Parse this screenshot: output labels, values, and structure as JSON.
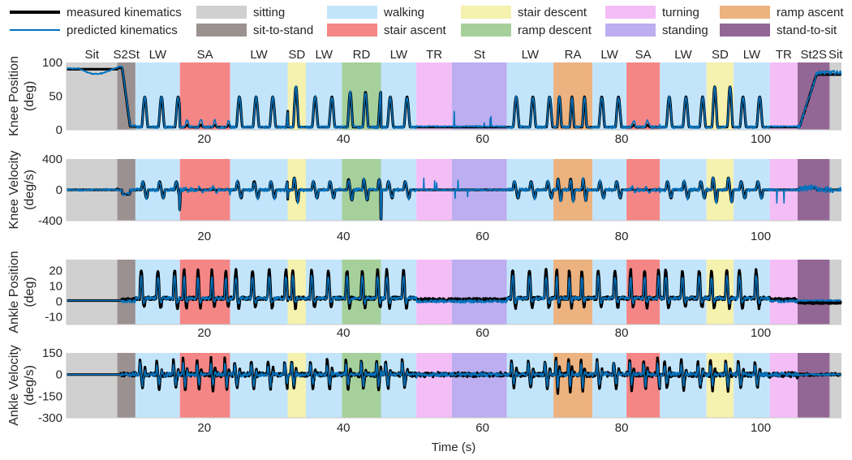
{
  "legend": {
    "lines": [
      {
        "label": "measured kinematics",
        "color": "#000000"
      },
      {
        "label": "predicted kinematics",
        "color": "#0072bd"
      }
    ],
    "activities": [
      {
        "key": "Sit",
        "label": "sitting",
        "color": "#d0d0d0"
      },
      {
        "key": "S2St",
        "label": "sit-to-stand",
        "color": "#9b9191"
      },
      {
        "key": "LW",
        "label": "walking",
        "color": "#c3e5fb"
      },
      {
        "key": "SA",
        "label": "stair ascent",
        "color": "#f58686"
      },
      {
        "key": "SD",
        "label": "stair descent",
        "color": "#f5f1ae"
      },
      {
        "key": "RD",
        "label": "ramp descent",
        "color": "#a6d09b"
      },
      {
        "key": "TR",
        "label": "turning",
        "color": "#f3bdf6"
      },
      {
        "key": "St",
        "label": "standing",
        "color": "#bcaef0"
      },
      {
        "key": "RA",
        "label": "ramp ascent",
        "color": "#ecb27f"
      },
      {
        "key": "St2S",
        "label": "stand-to-sit",
        "color": "#936795"
      }
    ]
  },
  "chart_data": {
    "type": "line",
    "xlabel": "Time (s)",
    "xlim": [
      0.2,
      111.6
    ],
    "xticks": [
      20,
      40,
      60,
      80,
      100
    ],
    "segments": [
      {
        "label": "Sit",
        "start": 0.2,
        "end": 7.5
      },
      {
        "label": "S2St",
        "start": 7.5,
        "end": 10.1
      },
      {
        "label": "LW",
        "start": 10.1,
        "end": 16.5
      },
      {
        "label": "SA",
        "start": 16.5,
        "end": 23.7
      },
      {
        "label": "LW",
        "start": 23.7,
        "end": 32.0
      },
      {
        "label": "SD",
        "start": 32.0,
        "end": 34.6
      },
      {
        "label": "LW",
        "start": 34.6,
        "end": 39.8
      },
      {
        "label": "RD",
        "start": 39.8,
        "end": 45.4
      },
      {
        "label": "LW",
        "start": 45.4,
        "end": 50.5
      },
      {
        "label": "TR",
        "start": 50.5,
        "end": 55.6
      },
      {
        "label": "St",
        "start": 55.6,
        "end": 63.5
      },
      {
        "label": "LW",
        "start": 63.5,
        "end": 70.2
      },
      {
        "label": "RA",
        "start": 70.2,
        "end": 75.8
      },
      {
        "label": "LW",
        "start": 75.8,
        "end": 80.7
      },
      {
        "label": "SA",
        "start": 80.7,
        "end": 85.5
      },
      {
        "label": "LW",
        "start": 85.5,
        "end": 92.2
      },
      {
        "label": "SD",
        "start": 92.2,
        "end": 96.1
      },
      {
        "label": "LW",
        "start": 96.1,
        "end": 101.3
      },
      {
        "label": "TR",
        "start": 101.3,
        "end": 105.3
      },
      {
        "label": "St2S",
        "start": 105.3,
        "end": 109.9
      },
      {
        "label": "Sit",
        "start": 109.9,
        "end": 111.6
      }
    ],
    "panels": [
      {
        "name": "knee-position",
        "ylabel": [
          "Knee Position",
          "(deg)"
        ],
        "ylim": [
          0,
          100
        ],
        "yticks": [
          0,
          50,
          100
        ],
        "series": [
          {
            "name": "measured kinematics",
            "style": "measured"
          },
          {
            "name": "predicted kinematics",
            "style": "predicted"
          }
        ],
        "approx_features": {
          "sit_level_measured": 90,
          "sit_level_predicted": 83,
          "stance_level": 5,
          "swing_peaks": [
            [
              12.2,
              30
            ],
            [
              14.7,
              40
            ],
            [
              26.5,
              40
            ],
            [
              29.2,
              50
            ],
            [
              31.5,
              30
            ],
            [
              33.3,
              68
            ],
            [
              35.8,
              45
            ],
            [
              38.5,
              48
            ],
            [
              41.0,
              50
            ],
            [
              43.0,
              55
            ],
            [
              45.2,
              54
            ],
            [
              47.5,
              52
            ],
            [
              49.5,
              50
            ],
            [
              65.5,
              38
            ],
            [
              68.0,
              48
            ],
            [
              71.5,
              40
            ],
            [
              73.3,
              46
            ],
            [
              75.0,
              44
            ],
            [
              77.5,
              46
            ],
            [
              79.8,
              42
            ],
            [
              87.0,
              40
            ],
            [
              89.8,
              44
            ],
            [
              92.0,
              48
            ],
            [
              94.3,
              62
            ],
            [
              96.5,
              64
            ],
            [
              99.0,
              45
            ],
            [
              101.5,
              22
            ]
          ],
          "stand_to_sit_final_measured": 82,
          "stand_to_sit_final_predicted": 85
        }
      },
      {
        "name": "knee-velocity",
        "ylabel": [
          "Knee Velocity",
          "(deg/s)"
        ],
        "ylim": [
          -400,
          400
        ],
        "yticks": [
          -400,
          0,
          400
        ],
        "series": [
          {
            "name": "measured kinematics",
            "style": "measured"
          },
          {
            "name": "predicted kinematics",
            "style": "predicted"
          }
        ],
        "approx_features": {
          "walk_peak_pos": 330,
          "walk_peak_neg": -280,
          "s2st_dip": -150
        }
      },
      {
        "name": "ankle-position",
        "ylabel": [
          "Ankle Position",
          "(deg)"
        ],
        "ylim": [
          -15,
          27
        ],
        "yticks": [
          -10,
          0,
          10,
          20
        ],
        "series": [
          {
            "name": "measured kinematics",
            "style": "measured"
          },
          {
            "name": "predicted kinematics",
            "style": "predicted"
          }
        ],
        "approx_features": {
          "walk_peak": 20,
          "walk_trough": -6,
          "rest_level": 0
        }
      },
      {
        "name": "ankle-velocity",
        "ylabel": [
          "Ankle Velocity",
          "(deg/s)"
        ],
        "ylim": [
          -300,
          150
        ],
        "yticks": [
          -300,
          -150,
          0,
          150
        ],
        "series": [
          {
            "name": "measured kinematics",
            "style": "measured"
          },
          {
            "name": "predicted kinematics",
            "style": "predicted"
          }
        ],
        "approx_features": {
          "walk_peak_pos": 100,
          "walk_peak_neg": -200,
          "min": -270
        }
      }
    ]
  }
}
